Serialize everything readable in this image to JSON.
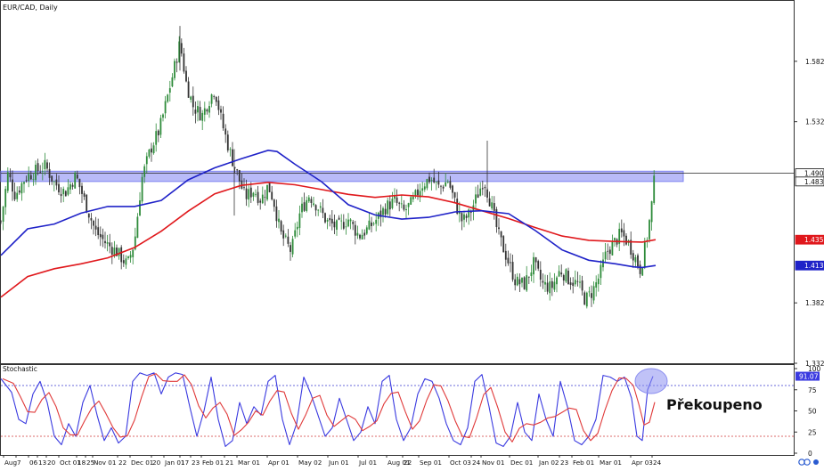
{
  "symbol_label": "EUR/CAD, Daily",
  "stoch_label": "Stochastic",
  "annotation": "Překoupeno",
  "colors": {
    "bull": "#2e8b3a",
    "bear": "#333333",
    "ma_fast": "#1f22c8",
    "ma_slow": "#e0181c",
    "zone": "#7f84f2",
    "stoch_k": "#3a3ae0",
    "stoch_d": "#e03a3a",
    "circle": "#8c8ff0",
    "axis": "#333333"
  },
  "chart_data": [
    {
      "type": "candlestick",
      "title": "EUR/CAD, Daily",
      "ylim": [
        1.3327,
        1.6327
      ],
      "y_ticks": [
        "1.5827",
        "1.5327",
        "1.3827",
        "1.3327"
      ],
      "x_ticks": [
        "Aug",
        "7",
        "06",
        "13",
        "20",
        "Oct 01",
        "18",
        "25",
        "Nov 01",
        "22",
        "Dec 01",
        "20",
        "Jan 01",
        "17",
        "23",
        "Feb 01",
        "21",
        "Mar 01",
        "Apr 01",
        "May 02",
        "Jun 01",
        "Jul 01",
        "Aug 01",
        "22",
        "Sep 01",
        "Oct 03",
        "24",
        "Nov 01",
        "Dec 01",
        "Jan 02",
        "23",
        "Feb 01",
        "Mar 01",
        "Apr 03",
        "24"
      ],
      "resistance_zone": [
        1.4832,
        1.4917
      ],
      "horizontal_line": 1.49,
      "price_labels": [
        {
          "text": "1.4900",
          "value": 1.49,
          "color": "#111111"
        },
        {
          "text": "1.4832",
          "value": 1.4832,
          "color": "#111111"
        },
        {
          "text": "1.4350",
          "value": 1.435,
          "color": "#e0181c"
        },
        {
          "text": "1.4136",
          "value": 1.4136,
          "color": "#1f22c8"
        }
      ],
      "price_path": [
        [
          0,
          1.45
        ],
        [
          8,
          1.49
        ],
        [
          16,
          1.472
        ],
        [
          28,
          1.487
        ],
        [
          40,
          1.492
        ],
        [
          50,
          1.496
        ],
        [
          60,
          1.482
        ],
        [
          72,
          1.474
        ],
        [
          84,
          1.488
        ],
        [
          96,
          1.463
        ],
        [
          106,
          1.442
        ],
        [
          118,
          1.432
        ],
        [
          130,
          1.425
        ],
        [
          142,
          1.414
        ],
        [
          150,
          1.433
        ],
        [
          158,
          1.485
        ],
        [
          168,
          1.51
        ],
        [
          178,
          1.526
        ],
        [
          186,
          1.55
        ],
        [
          194,
          1.575
        ],
        [
          201,
          1.598
        ],
        [
          208,
          1.565
        ],
        [
          216,
          1.545
        ],
        [
          226,
          1.538
        ],
        [
          232,
          1.548
        ],
        [
          240,
          1.56
        ],
        [
          248,
          1.532
        ],
        [
          258,
          1.505
        ],
        [
          266,
          1.488
        ],
        [
          274,
          1.47
        ],
        [
          284,
          1.476
        ],
        [
          292,
          1.468
        ],
        [
          300,
          1.48
        ],
        [
          306,
          1.468
        ],
        [
          314,
          1.44
        ],
        [
          326,
          1.425
        ],
        [
          336,
          1.458
        ],
        [
          346,
          1.472
        ],
        [
          356,
          1.462
        ],
        [
          366,
          1.45
        ],
        [
          378,
          1.445
        ],
        [
          390,
          1.452
        ],
        [
          402,
          1.438
        ],
        [
          412,
          1.444
        ],
        [
          422,
          1.452
        ],
        [
          432,
          1.462
        ],
        [
          442,
          1.467
        ],
        [
          452,
          1.458
        ],
        [
          462,
          1.466
        ],
        [
          472,
          1.48
        ],
        [
          482,
          1.486
        ],
        [
          492,
          1.478
        ],
        [
          502,
          1.484
        ],
        [
          510,
          1.465
        ],
        [
          518,
          1.45
        ],
        [
          526,
          1.456
        ],
        [
          534,
          1.47
        ],
        [
          542,
          1.485
        ],
        [
          550,
          1.465
        ],
        [
          558,
          1.44
        ],
        [
          568,
          1.42
        ],
        [
          578,
          1.4
        ],
        [
          588,
          1.398
        ],
        [
          598,
          1.415
        ],
        [
          608,
          1.398
        ],
        [
          618,
          1.395
        ],
        [
          628,
          1.41
        ],
        [
          638,
          1.402
        ],
        [
          648,
          1.398
        ],
        [
          656,
          1.385
        ],
        [
          664,
          1.392
        ],
        [
          672,
          1.405
        ],
        [
          680,
          1.425
        ],
        [
          688,
          1.432
        ],
        [
          696,
          1.44
        ],
        [
          704,
          1.433
        ],
        [
          712,
          1.42
        ],
        [
          718,
          1.41
        ],
        [
          722,
          1.425
        ],
        [
          726,
          1.44
        ],
        [
          730,
          1.46
        ],
        [
          734,
          1.488
        ]
      ],
      "ma_fast_path": [
        [
          0,
          1.422
        ],
        [
          30,
          1.444
        ],
        [
          60,
          1.448
        ],
        [
          90,
          1.457
        ],
        [
          120,
          1.4625
        ],
        [
          150,
          1.4625
        ],
        [
          180,
          1.4675
        ],
        [
          210,
          1.4845
        ],
        [
          240,
          1.4945
        ],
        [
          270,
          1.502
        ],
        [
          300,
          1.509
        ],
        [
          310,
          1.508
        ],
        [
          330,
          1.4975
        ],
        [
          360,
          1.483
        ],
        [
          390,
          1.464
        ],
        [
          420,
          1.4555
        ],
        [
          450,
          1.452
        ],
        [
          480,
          1.4535
        ],
        [
          510,
          1.458
        ],
        [
          540,
          1.459
        ],
        [
          570,
          1.4565
        ],
        [
          600,
          1.4425
        ],
        [
          630,
          1.4265
        ],
        [
          660,
          1.418
        ],
        [
          690,
          1.415
        ],
        [
          710,
          1.4125
        ],
        [
          720,
          1.412
        ],
        [
          735,
          1.4136
        ]
      ],
      "ma_slow_path": [
        [
          0,
          1.3875
        ],
        [
          30,
          1.4045
        ],
        [
          60,
          1.411
        ],
        [
          90,
          1.415
        ],
        [
          120,
          1.42
        ],
        [
          150,
          1.4285
        ],
        [
          180,
          1.442
        ],
        [
          210,
          1.4585
        ],
        [
          240,
          1.473
        ],
        [
          270,
          1.48
        ],
        [
          300,
          1.4825
        ],
        [
          330,
          1.4805
        ],
        [
          360,
          1.4765
        ],
        [
          390,
          1.4725
        ],
        [
          420,
          1.47
        ],
        [
          450,
          1.472
        ],
        [
          480,
          1.4705
        ],
        [
          510,
          1.4655
        ],
        [
          540,
          1.459
        ],
        [
          570,
          1.4525
        ],
        [
          600,
          1.445
        ],
        [
          630,
          1.438
        ],
        [
          660,
          1.4345
        ],
        [
          690,
          1.4335
        ],
        [
          720,
          1.433
        ],
        [
          735,
          1.435
        ]
      ]
    },
    {
      "type": "line",
      "title": "Stochastic",
      "ylim": [
        0,
        100
      ],
      "y_ticks": [
        "100",
        "75",
        "50",
        "25",
        "0"
      ],
      "levels": [
        80,
        20
      ],
      "current_value_label": "91.07",
      "series": [
        {
          "values": [
            [
              0,
              88
            ],
            [
              12,
              72
            ],
            [
              20,
              40
            ],
            [
              28,
              35
            ],
            [
              36,
              70
            ],
            [
              44,
              85
            ],
            [
              52,
              60
            ],
            [
              60,
              20
            ],
            [
              68,
              10
            ],
            [
              76,
              35
            ],
            [
              84,
              20
            ],
            [
              92,
              60
            ],
            [
              100,
              80
            ],
            [
              108,
              45
            ],
            [
              116,
              15
            ],
            [
              124,
              30
            ],
            [
              132,
              12
            ],
            [
              140,
              20
            ],
            [
              148,
              85
            ],
            [
              156,
              95
            ],
            [
              164,
              92
            ],
            [
              172,
              95
            ],
            [
              180,
              70
            ],
            [
              188,
              90
            ],
            [
              196,
              95
            ],
            [
              204,
              93
            ],
            [
              212,
              55
            ],
            [
              220,
              20
            ],
            [
              228,
              50
            ],
            [
              236,
              90
            ],
            [
              244,
              40
            ],
            [
              252,
              8
            ],
            [
              260,
              15
            ],
            [
              268,
              60
            ],
            [
              276,
              35
            ],
            [
              284,
              55
            ],
            [
              292,
              45
            ],
            [
              300,
              85
            ],
            [
              308,
              92
            ],
            [
              316,
              40
            ],
            [
              324,
              10
            ],
            [
              332,
              35
            ],
            [
              340,
              90
            ],
            [
              348,
              70
            ],
            [
              356,
              45
            ],
            [
              364,
              20
            ],
            [
              372,
              30
            ],
            [
              380,
              65
            ],
            [
              388,
              40
            ],
            [
              396,
              15
            ],
            [
              404,
              25
            ],
            [
              412,
              55
            ],
            [
              420,
              35
            ],
            [
              428,
              85
            ],
            [
              436,
              92
            ],
            [
              444,
              40
            ],
            [
              452,
              15
            ],
            [
              460,
              30
            ],
            [
              468,
              70
            ],
            [
              476,
              88
            ],
            [
              484,
              85
            ],
            [
              492,
              65
            ],
            [
              500,
              35
            ],
            [
              508,
              15
            ],
            [
              516,
              10
            ],
            [
              524,
              30
            ],
            [
              532,
              85
            ],
            [
              540,
              93
            ],
            [
              548,
              55
            ],
            [
              556,
              12
            ],
            [
              564,
              8
            ],
            [
              572,
              20
            ],
            [
              580,
              60
            ],
            [
              588,
              25
            ],
            [
              596,
              15
            ],
            [
              604,
              70
            ],
            [
              612,
              40
            ],
            [
              620,
              20
            ],
            [
              628,
              85
            ],
            [
              636,
              55
            ],
            [
              644,
              15
            ],
            [
              652,
              10
            ],
            [
              660,
              20
            ],
            [
              668,
              40
            ],
            [
              676,
              92
            ],
            [
              684,
              90
            ],
            [
              692,
              85
            ],
            [
              700,
              90
            ],
            [
              708,
              65
            ],
            [
              714,
              20
            ],
            [
              720,
              15
            ],
            [
              726,
              75
            ],
            [
              732,
              91
            ]
          ]
        }
      ]
    }
  ]
}
